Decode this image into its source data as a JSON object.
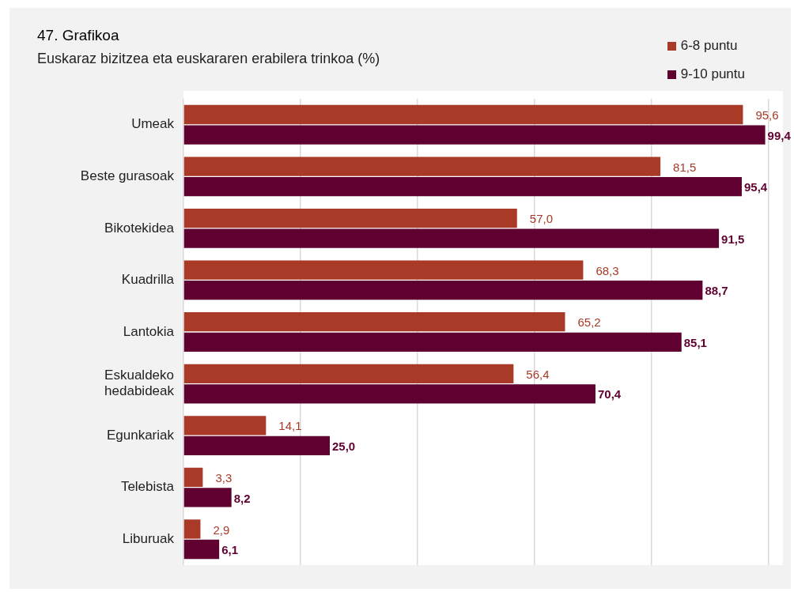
{
  "chart_data": {
    "type": "bar",
    "orientation": "horizontal",
    "title": "47. Grafikoa",
    "subtitle": "Euskaraz bizitzea eta euskararen erabilera trinkoa (%)",
    "categories": [
      "Umeak",
      "Beste gurasoak",
      "Bikotekidea",
      "Kuadrilla",
      "Lantokia",
      "Eskualdeko hedabideak",
      "Egunkariak",
      "Telebista",
      "Liburuak"
    ],
    "series": [
      {
        "name": "6-8 puntu",
        "color": "#a93a28",
        "values": [
          95.6,
          81.5,
          57.0,
          68.3,
          65.2,
          56.4,
          14.1,
          3.3,
          2.9
        ],
        "value_labels": [
          "95,6",
          "81,5",
          "57,0",
          "68,3",
          "65,2",
          "56,4",
          "14,1",
          "3,3",
          "2,9"
        ]
      },
      {
        "name": "9-10 puntu",
        "color": "#5f0030",
        "values": [
          99.4,
          95.4,
          91.5,
          88.7,
          85.1,
          70.4,
          25.0,
          8.2,
          6.1
        ],
        "value_labels": [
          "99,4",
          "95,4",
          "91,5",
          "88,7",
          "85,1",
          "70,4",
          "25,0",
          "8,2",
          "6,1"
        ]
      }
    ],
    "xlim": [
      0,
      100
    ],
    "xticks": [
      {
        "value": 0,
        "label": null
      },
      {
        "value": 20,
        "label": null
      },
      {
        "value": 40,
        "label": null
      },
      {
        "value": 60,
        "label": null
      },
      {
        "value": 80,
        "label": null
      },
      {
        "value": 100,
        "label": null
      }
    ],
    "grid": "x",
    "legend": "top right",
    "tick_labels": "y"
  }
}
